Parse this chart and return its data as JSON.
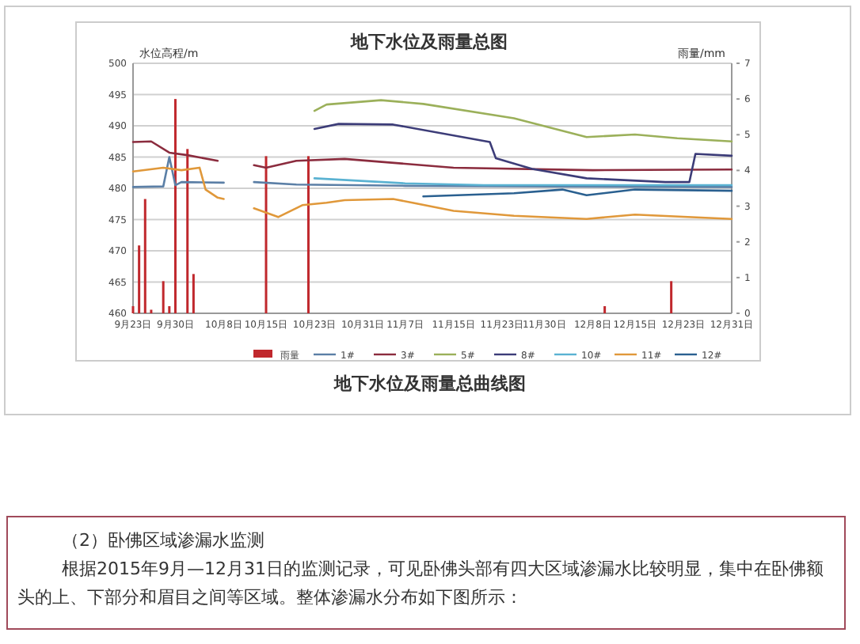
{
  "chart_data": {
    "type": "line",
    "title": "地下水位及雨量总图",
    "ylabel": "水位高程/m",
    "y2label": "雨量/mm",
    "xlim": [
      "--09-23",
      "--12-31"
    ],
    "xticks": [
      {
        "value": "--09-23",
        "label": "9月23日"
      },
      {
        "value": "--09-30",
        "label": "9月30日"
      },
      {
        "value": "--10-08",
        "label": "10月8日"
      },
      {
        "value": "--10-15",
        "label": "10月15日"
      },
      {
        "value": "--10-23",
        "label": "10月23日"
      },
      {
        "value": "--10-31",
        "label": "10月31日"
      },
      {
        "value": "--11-07",
        "label": "11月7日"
      },
      {
        "value": "--11-15",
        "label": "11月15日"
      },
      {
        "value": "--11-23",
        "label": "11月23日"
      },
      {
        "value": "--11-30",
        "label": "11月30日"
      },
      {
        "value": "--12-08",
        "label": "12月8日"
      },
      {
        "value": "--12-15",
        "label": "12月15日"
      },
      {
        "value": "--12-23",
        "label": "12月23日"
      },
      {
        "value": "--12-31",
        "label": "12月31日"
      }
    ],
    "ylim": [
      460,
      500
    ],
    "yticks": [
      460,
      465,
      470,
      475,
      480,
      485,
      490,
      495,
      500
    ],
    "y2lim": [
      0,
      7
    ],
    "y2ticks": [
      0,
      1,
      2,
      3,
      4,
      5,
      6,
      7
    ],
    "grid": "y",
    "legend": "bottom",
    "marker": "none",
    "line_style": "solid",
    "series": [
      {
        "name": "雨量",
        "type": "bar",
        "axis": "y2",
        "color": "#c0282d",
        "x": [
          "--09-23",
          "--09-24",
          "--09-25",
          "--09-26",
          "--09-28",
          "--09-29",
          "--09-30",
          "--10-02",
          "--10-03",
          "--10-15",
          "--10-22",
          "--12-10",
          "--12-21"
        ],
        "values": [
          0.2,
          1.9,
          3.2,
          0.1,
          0.9,
          0.2,
          6.0,
          4.6,
          1.1,
          4.4,
          4.4,
          0.2,
          0.9
        ]
      },
      {
        "name": "1#",
        "color": "#5b7fa6",
        "x": [
          "--09-23",
          "--09-28",
          "--09-29",
          "--09-30",
          "--10-01",
          "--10-08",
          "--10-09",
          "--10-13",
          "--10-20",
          "--11-07",
          "--12-01",
          "--12-31"
        ],
        "values": [
          480.2,
          480.3,
          485.0,
          480.5,
          481.0,
          480.9,
          null,
          481.0,
          480.6,
          480.4,
          480.3,
          480.2
        ]
      },
      {
        "name": "3#",
        "color": "#8b2c3e",
        "x": [
          "--09-23",
          "--09-26",
          "--09-29",
          "--10-02",
          "--10-07",
          "--10-08",
          "--10-13",
          "--10-15",
          "--10-20",
          "--10-28",
          "--11-15",
          "--12-08",
          "--12-31"
        ],
        "values": [
          487.4,
          487.5,
          485.7,
          485.3,
          484.4,
          null,
          483.7,
          483.3,
          484.4,
          484.7,
          483.3,
          482.9,
          483.0
        ]
      },
      {
        "name": "5#",
        "color": "#9bb05a",
        "x": [
          "--10-23",
          "--10-25",
          "--11-03",
          "--11-10",
          "--11-25",
          "--12-07",
          "--12-15",
          "--12-22",
          "--12-31"
        ],
        "values": [
          492.4,
          493.4,
          494.1,
          493.5,
          491.2,
          488.2,
          488.6,
          488.0,
          487.5
        ]
      },
      {
        "name": "8#",
        "color": "#3c3c78",
        "x": [
          "--10-23",
          "--10-27",
          "--11-05",
          "--11-21",
          "--11-22",
          "--11-28",
          "--12-07",
          "--12-20",
          "--12-24",
          "--12-25",
          "--12-31"
        ],
        "values": [
          489.5,
          490.3,
          490.2,
          487.4,
          484.8,
          483.1,
          481.6,
          481.0,
          481.0,
          485.5,
          485.2
        ]
      },
      {
        "name": "10#",
        "color": "#5ab2d2",
        "x": [
          "--10-23",
          "--11-07",
          "--11-20",
          "--12-31"
        ],
        "values": [
          481.6,
          480.8,
          480.5,
          480.5
        ]
      },
      {
        "name": "11#",
        "color": "#e0983a",
        "x": [
          "--09-23",
          "--09-28",
          "--10-01",
          "--10-04",
          "--10-05",
          "--10-07",
          "--10-08",
          "--10-09",
          "--10-13",
          "--10-17",
          "--10-21",
          "--10-25",
          "--10-28",
          "--11-05",
          "--11-15",
          "--11-25",
          "--12-07",
          "--12-15",
          "--12-31"
        ],
        "values": [
          482.7,
          483.3,
          482.9,
          483.3,
          479.8,
          478.5,
          478.3,
          null,
          476.8,
          475.4,
          477.3,
          477.7,
          478.1,
          478.3,
          476.4,
          475.6,
          475.1,
          475.8,
          475.1
        ]
      },
      {
        "name": "12#",
        "color": "#2a6090",
        "x": [
          "--11-10",
          "--11-25",
          "--12-03",
          "--12-07",
          "--12-15",
          "--12-31"
        ],
        "values": [
          478.7,
          479.2,
          479.8,
          478.9,
          479.8,
          479.6
        ]
      }
    ],
    "annotations": [
      "地下水位及雨量总曲线图",
      "（2）卧佛区域渗漏水监测",
      "根据2015年9月—12月31日的监测记录，可见卧佛头部有四大区域渗漏水比较明显，集中在卧佛额头的上、下部分和眉目之间等区域。整体渗漏水分布如下图所示："
    ]
  }
}
